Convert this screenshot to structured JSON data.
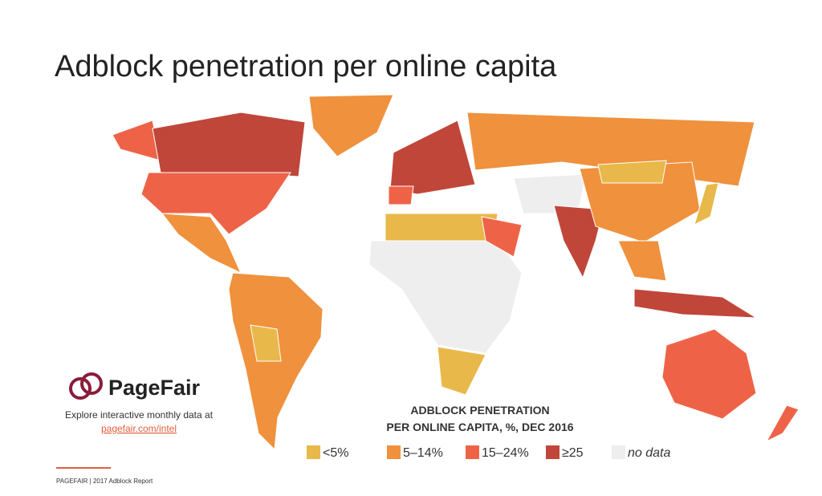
{
  "header": {
    "title": "Adblock penetration per online capita"
  },
  "branding": {
    "logo": "PageFair",
    "explore": "Explore interactive monthly data at",
    "link": "pagefair.com/intel"
  },
  "legend": {
    "title_lines": [
      "ADBLOCK PENETRATION",
      "PER ONLINE CAPITA, %, DEC 2016"
    ],
    "items": [
      {
        "label": "<5%",
        "color": "#e8b84a"
      },
      {
        "label": "5–14%",
        "color": "#f0913d"
      },
      {
        "label": "15–24%",
        "color": "#ee6347"
      },
      {
        "label": "≥25",
        "color": "#c0463a"
      },
      {
        "label": "no data",
        "color": "#eeeeee"
      }
    ]
  },
  "footer": {
    "text": "PAGEFAIR | 2017 Adblock Report"
  }
}
